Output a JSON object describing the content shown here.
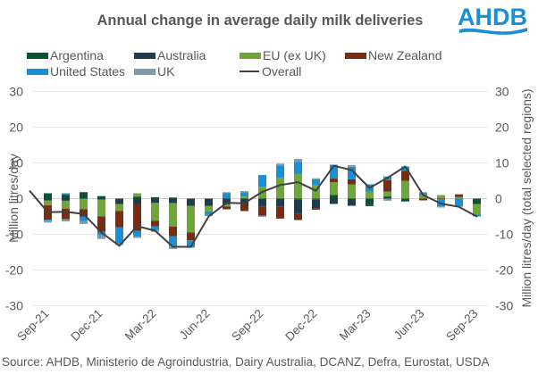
{
  "brand": {
    "logo_text": "AHDB",
    "logo_color": "#1a8fd6"
  },
  "source": "Source: AHDB, Ministerio de Agroindustria, Dairy Australia, DCANZ, Defra, Eurostat, USDA",
  "chart_data": {
    "type": "bar",
    "stacked": true,
    "title": "Annual change in average daily milk deliveries",
    "ylabel": "Million litres/day",
    "ylabel_right": "Million litres/day (total selected regions)",
    "xlabel": "",
    "ylim": [
      -30,
      30
    ],
    "yticks": [
      30,
      20,
      10,
      0,
      -10,
      -20,
      -30
    ],
    "ylim_right": [
      -30,
      30
    ],
    "grid": true,
    "legend_position": "top",
    "categories": [
      "Aug-21",
      "Sep-21",
      "Oct-21",
      "Nov-21",
      "Dec-21",
      "Jan-22",
      "Feb-22",
      "Mar-22",
      "Apr-22",
      "May-22",
      "Jun-22",
      "Jul-22",
      "Aug-22",
      "Sep-22",
      "Oct-22",
      "Nov-22",
      "Dec-22",
      "Jan-23",
      "Feb-23",
      "Mar-23",
      "Apr-23",
      "May-23",
      "Jun-23",
      "Jul-23",
      "Aug-23",
      "Sep-23"
    ],
    "xtick_labels": [
      "Sep-21",
      "Dec-21",
      "Mar-22",
      "Jun-22",
      "Sep-22",
      "Dec-22",
      "Mar-23",
      "Jun-23",
      "Sep-23"
    ],
    "series": [
      {
        "name": "Argentina",
        "type": "bar",
        "color": "#0b5230",
        "values": [
          0,
          1.5,
          1.0,
          1.5,
          0.7,
          0,
          0.5,
          0.4,
          0.3,
          0,
          0,
          0,
          0,
          0,
          0,
          -0.3,
          -0.2,
          1.0,
          0,
          -1.8,
          0.6,
          -0.8,
          0,
          0,
          0,
          -1.5
        ]
      },
      {
        "name": "Australia",
        "type": "bar",
        "color": "#1f3d4e",
        "values": [
          0,
          -0.5,
          -0.6,
          0.3,
          -0.3,
          -1.5,
          -1.5,
          -1.2,
          -1.3,
          -2.0,
          -2.0,
          -1.6,
          -1.5,
          -2.3,
          -2.3,
          -4.0,
          -2.6,
          -1.5,
          -2.0,
          -0.3,
          0,
          0,
          0,
          0,
          0,
          0
        ]
      },
      {
        "name": "EU (ex UK)",
        "type": "bar",
        "color": "#6ea637",
        "values": [
          0,
          -1.4,
          -2.2,
          -3.0,
          -4.7,
          -2.0,
          1.0,
          -5.0,
          -6.5,
          -7.5,
          -1.6,
          -0.6,
          0.6,
          3.3,
          5.9,
          7.0,
          3.9,
          3.6,
          4.0,
          2.0,
          1.4,
          5.0,
          1.0,
          1.0,
          0.5,
          -3.0
        ]
      },
      {
        "name": "New Zealand",
        "type": "bar",
        "color": "#7b2c10",
        "values": [
          0,
          -4.0,
          -3.0,
          -2.0,
          -4.3,
          -4.5,
          -7.5,
          -1.6,
          -2.7,
          -2.2,
          0,
          -0.8,
          -2.0,
          -2.5,
          -3.3,
          -1.7,
          -0.3,
          1.0,
          1.4,
          0,
          3.2,
          2.8,
          -0.5,
          -0.2,
          0.7,
          0
        ]
      },
      {
        "name": "United States",
        "type": "bar",
        "color": "#1790d8",
        "values": [
          0,
          -0.3,
          0.5,
          -1.3,
          -1.0,
          -4.5,
          -1.5,
          -1.0,
          -2.8,
          -1.8,
          -1.0,
          1.5,
          1.2,
          3.3,
          3.4,
          3.3,
          1.5,
          3.9,
          3.5,
          2.0,
          1.0,
          1.2,
          0.5,
          -2.0,
          -2.0,
          -0.5
        ]
      },
      {
        "name": "UK",
        "type": "bar",
        "color": "#7b9ca8",
        "values": [
          0,
          -0.5,
          -0.6,
          -0.8,
          -1.0,
          -0.5,
          -0.5,
          -0.5,
          -0.8,
          -0.3,
          -0.3,
          0.3,
          0.3,
          -0.3,
          0.5,
          0.8,
          0.3,
          0,
          0.5,
          0,
          -0.6,
          0,
          0.3,
          -0.3,
          -0.3,
          0
        ]
      },
      {
        "name": "Overall",
        "type": "line",
        "color": "#404040",
        "values": [
          2.1,
          -3.8,
          -3.7,
          -4.3,
          -9.5,
          -13.2,
          -7.7,
          -9.0,
          -13.5,
          -13.5,
          -5.0,
          -1.2,
          -1.3,
          1.9,
          3.8,
          4.6,
          2.2,
          9.2,
          8.0,
          3.0,
          5.8,
          9.0,
          1.0,
          -1.4,
          -2.3,
          -5.0
        ]
      }
    ]
  }
}
